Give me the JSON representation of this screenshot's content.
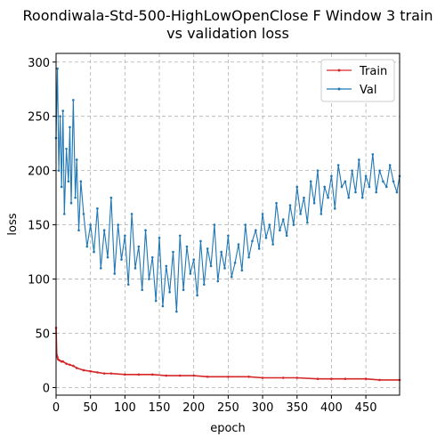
{
  "chart_data": {
    "type": "line",
    "title_lines": [
      "Roondiwala-Std-500-HighLowOpenClose F Window 3 train",
      "vs validation loss"
    ],
    "xlabel": "epoch",
    "ylabel": "loss",
    "xlim": [
      0,
      499
    ],
    "ylim": [
      -7,
      308
    ],
    "xticks": [
      0,
      50,
      100,
      150,
      200,
      250,
      300,
      350,
      400,
      450
    ],
    "yticks": [
      0,
      50,
      100,
      150,
      200,
      250,
      300
    ],
    "grid": true,
    "legend_position": "top-right",
    "series": [
      {
        "name": "Train",
        "color": "#d62728",
        "x": [
          0,
          1,
          2,
          3,
          5,
          8,
          10,
          15,
          20,
          25,
          30,
          40,
          50,
          60,
          70,
          80,
          100,
          120,
          140,
          160,
          180,
          200,
          220,
          250,
          280,
          300,
          330,
          350,
          380,
          400,
          420,
          450,
          470,
          499
        ],
        "y": [
          55,
          30,
          28,
          26,
          25,
          24,
          24,
          22,
          21,
          20,
          18,
          16,
          15,
          14,
          13,
          13,
          12,
          12,
          12,
          11,
          11,
          11,
          10,
          10,
          10,
          9,
          9,
          9,
          8,
          8,
          8,
          8,
          7,
          7
        ]
      },
      {
        "name": "Val",
        "color": "#1f77b4",
        "x": [
          0,
          2,
          4,
          6,
          8,
          10,
          12,
          15,
          18,
          20,
          22,
          25,
          28,
          30,
          33,
          36,
          40,
          45,
          50,
          55,
          60,
          65,
          70,
          75,
          80,
          85,
          90,
          95,
          100,
          105,
          110,
          115,
          120,
          125,
          130,
          135,
          140,
          145,
          150,
          155,
          160,
          165,
          170,
          175,
          180,
          185,
          190,
          195,
          200,
          205,
          210,
          215,
          220,
          225,
          230,
          235,
          240,
          245,
          250,
          255,
          260,
          265,
          270,
          275,
          280,
          285,
          290,
          295,
          300,
          305,
          310,
          315,
          320,
          325,
          330,
          335,
          340,
          345,
          350,
          355,
          360,
          365,
          370,
          375,
          380,
          385,
          390,
          395,
          400,
          405,
          410,
          415,
          420,
          425,
          430,
          435,
          440,
          445,
          450,
          455,
          460,
          465,
          470,
          475,
          480,
          485,
          490,
          495,
          499
        ],
        "y": [
          230,
          294,
          200,
          250,
          185,
          255,
          160,
          220,
          190,
          240,
          170,
          265,
          175,
          210,
          145,
          190,
          160,
          130,
          150,
          125,
          165,
          110,
          145,
          120,
          175,
          105,
          150,
          118,
          140,
          95,
          160,
          110,
          130,
          90,
          145,
          100,
          120,
          80,
          138,
          75,
          112,
          88,
          125,
          70,
          140,
          90,
          130,
          105,
          118,
          85,
          135,
          95,
          128,
          112,
          150,
          98,
          125,
          110,
          140,
          102,
          115,
          132,
          108,
          150,
          120,
          135,
          145,
          128,
          160,
          138,
          150,
          132,
          170,
          145,
          155,
          140,
          168,
          150,
          185,
          160,
          175,
          152,
          190,
          170,
          200,
          160,
          185,
          175,
          195,
          165,
          205,
          185,
          190,
          175,
          200,
          180,
          210,
          175,
          195,
          185,
          215,
          180,
          200,
          190,
          185,
          205,
          190,
          180,
          195
        ]
      }
    ]
  }
}
